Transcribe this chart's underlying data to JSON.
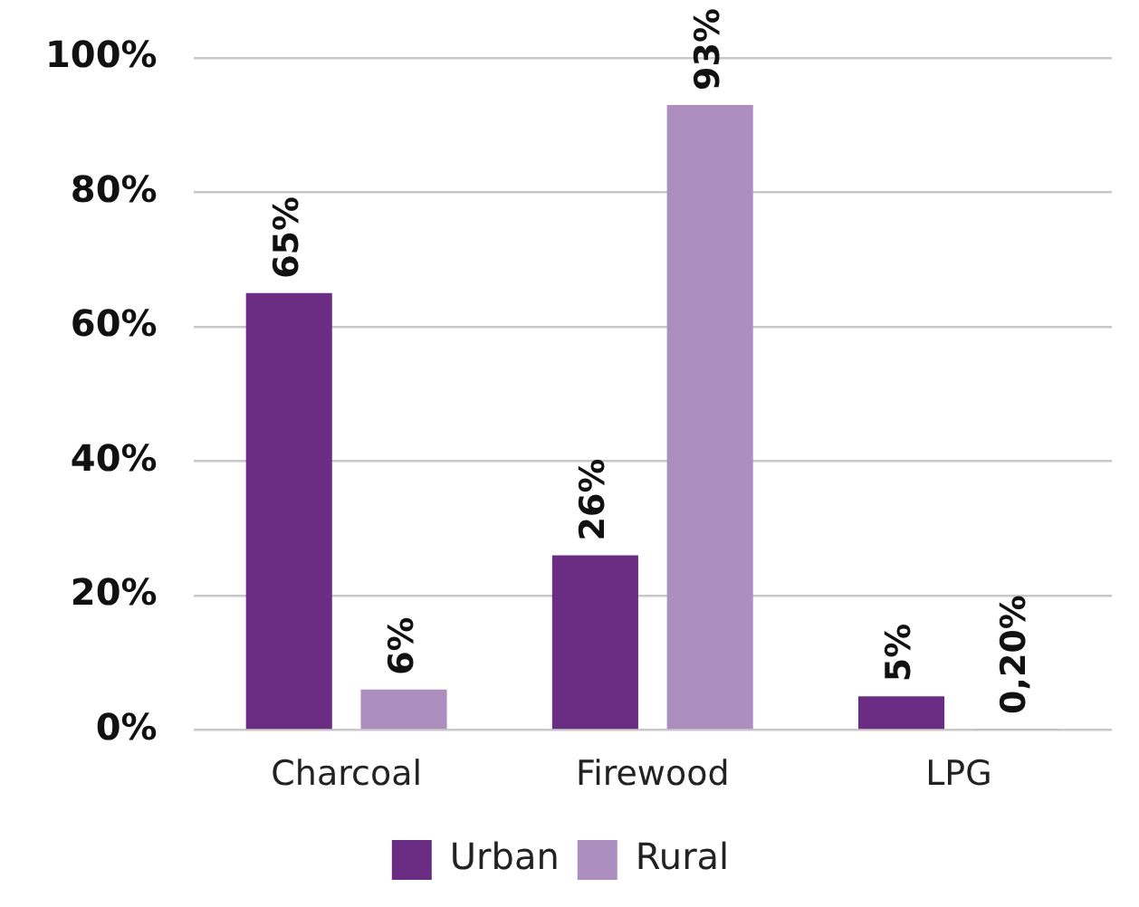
{
  "chart_data": {
    "type": "bar",
    "categories": [
      "Charcoal",
      "Firewood",
      "LPG"
    ],
    "series": [
      {
        "name": "Urban",
        "color": "#6b2d84",
        "values": [
          65,
          26,
          5
        ],
        "value_labels": [
          "65%",
          "26%",
          "5%"
        ]
      },
      {
        "name": "Rural",
        "color": "#ad8fbf",
        "values": [
          6,
          93,
          0.2
        ],
        "value_labels": [
          "6%",
          "93%",
          "0,20%"
        ]
      }
    ],
    "ylim": [
      0,
      100
    ],
    "yticks": [
      {
        "value": 0,
        "label": "0%"
      },
      {
        "value": 20,
        "label": "20%"
      },
      {
        "value": 40,
        "label": "40%"
      },
      {
        "value": 60,
        "label": "60%"
      },
      {
        "value": 80,
        "label": "80%"
      },
      {
        "value": 100,
        "label": "100%"
      }
    ],
    "grid": "y",
    "legend": "bottom"
  }
}
